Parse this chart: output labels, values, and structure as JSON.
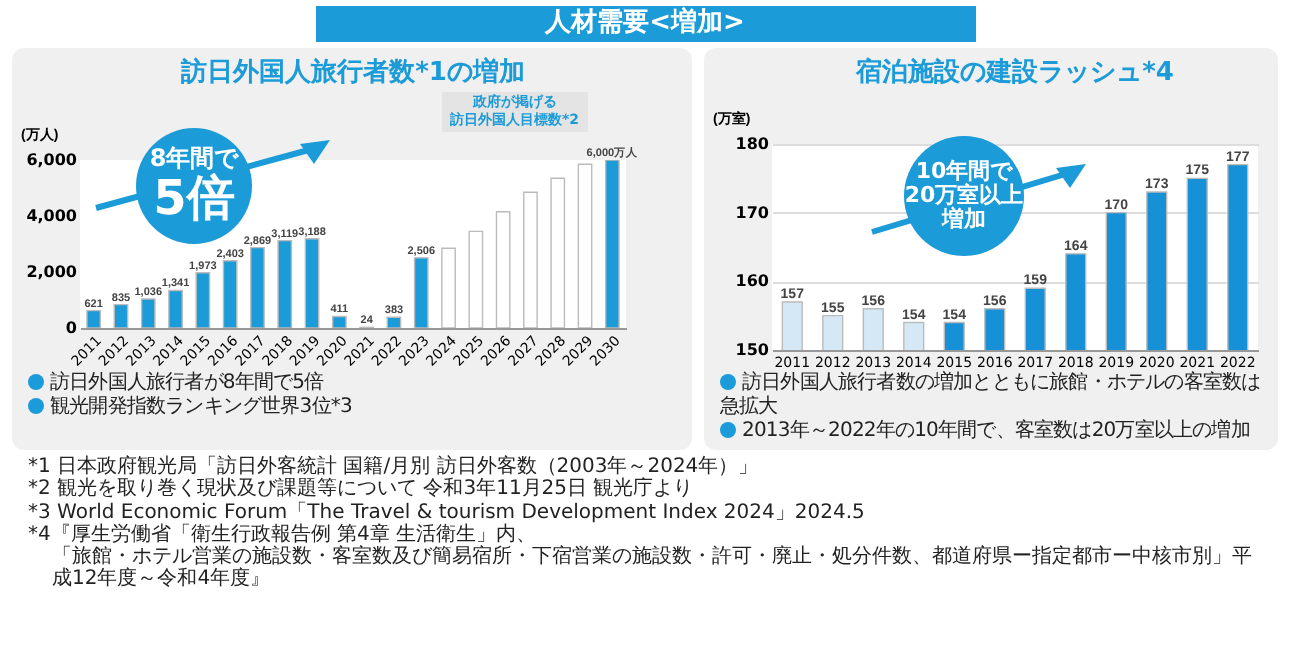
{
  "chart_data": [
    {
      "type": "bar",
      "title": "訪日外国人旅行者数*1の増加",
      "ylabel": "(万人)",
      "categories": [
        "2011",
        "2012",
        "2013",
        "2014",
        "2015",
        "2016",
        "2017",
        "2018",
        "2019",
        "2020",
        "2021",
        "2022",
        "2023",
        "2024",
        "2025",
        "2026",
        "2027",
        "2028",
        "2029",
        "2030"
      ],
      "values": [
        621,
        835,
        1036,
        1341,
        1973,
        2403,
        2869,
        3119,
        3188,
        411,
        24,
        383,
        2506,
        2850,
        3450,
        4150,
        4850,
        5350,
        5850,
        6000
      ],
      "colors": [
        "#1b9bd7",
        "#1b9bd7",
        "#1b9bd7",
        "#1b9bd7",
        "#1b9bd7",
        "#1b9bd7",
        "#1b9bd7",
        "#1b9bd7",
        "#1b9bd7",
        "#1b9bd7",
        "#1b9bd7",
        "#1b9bd7",
        "#1b9bd7",
        "#ffffff",
        "#ffffff",
        "#ffffff",
        "#ffffff",
        "#ffffff",
        "#ffffff",
        "#1b9bd7"
      ],
      "value_labels": [
        "621",
        "835",
        "1,036",
        "1,341",
        "1,973",
        "2,403",
        "2,869",
        "3,119",
        "3,188",
        "411",
        "24",
        "383",
        "2,506",
        null,
        null,
        null,
        null,
        null,
        null,
        "6,000万人"
      ],
      "ylim": [
        0,
        6000
      ],
      "yticks": [
        {
          "value": 0,
          "label": "0"
        },
        {
          "value": 2000,
          "label": "2,000"
        },
        {
          "value": 4000,
          "label": "4,000"
        },
        {
          "value": 6000,
          "label": "6,000"
        }
      ],
      "annotations": [
        "人材需要<増加>",
        "8年間で",
        "5倍",
        "政府が掲げる",
        "訪日外国人目標数*2",
        "訪日外国人旅行者が8年間で5倍",
        "観光開発指数ランキング世界3位*3"
      ]
    },
    {
      "type": "bar",
      "title": "宿泊施設の建設ラッシュ*4",
      "ylabel": "(万室)",
      "categories": [
        "2011",
        "2012",
        "2013",
        "2014",
        "2015",
        "2016",
        "2017",
        "2018",
        "2019",
        "2020",
        "2021",
        "2022"
      ],
      "values": [
        157,
        155,
        156,
        154,
        154,
        156,
        159,
        164,
        170,
        173,
        175,
        177
      ],
      "colors": [
        "#d4e8f5",
        "#d4e8f5",
        "#d4e8f5",
        "#d4e8f5",
        "#1690d6",
        "#1690d6",
        "#1690d6",
        "#1690d6",
        "#1690d6",
        "#1690d6",
        "#1690d6",
        "#1690d6"
      ],
      "data_labels": true,
      "grid": "y",
      "ylim": [
        150,
        180
      ],
      "yticks": [
        150,
        160,
        170,
        180
      ],
      "annotations": [
        "10年間で",
        "20万室以上",
        "増加",
        "訪日外国人旅行者数の増加とともに旅館・ホテルの客室数は急拡大",
        "2013年～2022年の10年間で、客室数は20万室以上の増加",
        "*1 日本政府観光局「訪日外客統計 国籍/月別 訪日外客数（2003年～2024年）」",
        "*2 観光を取り巻く現状及び課題等について 令和3年11月25日 観光庁より",
        "*3 World Economic Forum「The Travel & tourism Development Index 2024」2024.5",
        "*4『厚生労働省「衛生行政報告例 第4章 生活衛生」内、",
        "「旅館・ホテル営業の施設数・客室数及び簡易宿所・下宿営業の施設数・許可・廃止・処分件数、都道府県ー指定都市ー中核市別」平成12年度～令和4年度』"
      ]
    }
  ]
}
